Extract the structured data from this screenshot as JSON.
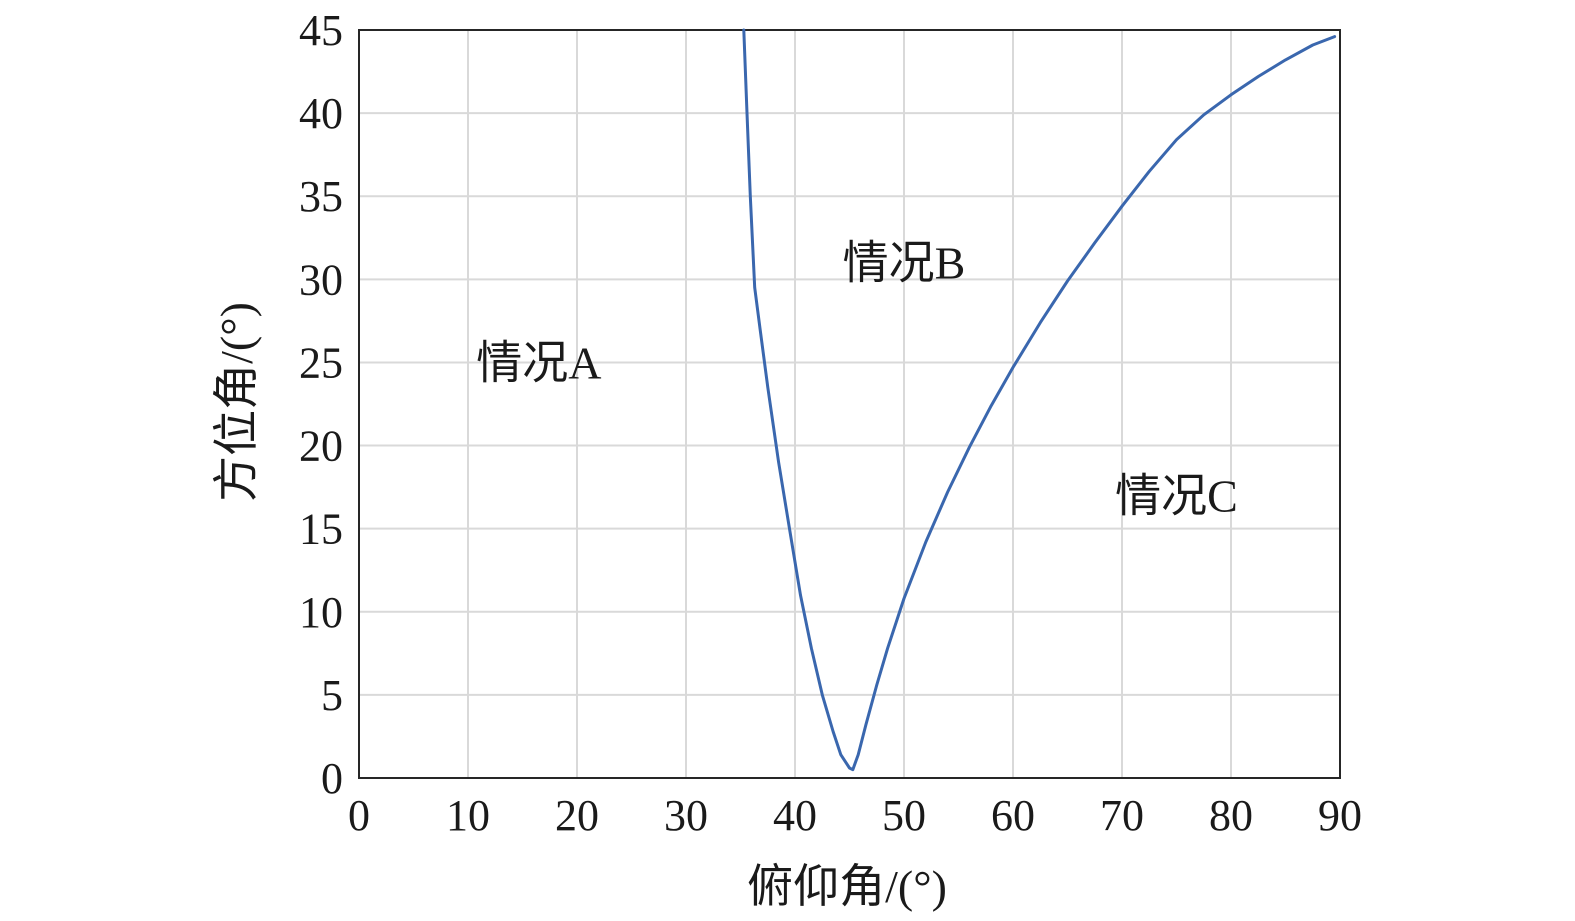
{
  "chart_data": {
    "type": "line",
    "xlabel": "俯仰角/(°)",
    "ylabel": "方位角/(°)",
    "xlim": [
      0,
      90
    ],
    "ylim": [
      0,
      45
    ],
    "xticks": [
      0,
      10,
      20,
      30,
      40,
      50,
      60,
      70,
      80,
      90
    ],
    "yticks": [
      0,
      5,
      10,
      15,
      20,
      25,
      30,
      35,
      40,
      45
    ],
    "grid": true,
    "series": [
      {
        "color": "#3a67ae",
        "x": [
          35.3,
          35.6,
          35.9,
          36.3,
          36.8,
          37.5,
          38.5,
          39.5,
          40.5,
          41.5,
          42.5,
          43.5,
          44.2,
          45.0,
          45.3,
          45.8,
          46.5,
          47.5,
          48.5,
          50.0,
          52.0,
          54.0,
          56.0,
          58.0,
          60.0,
          62.5,
          65.0,
          67.5,
          70.0,
          72.5,
          75.0,
          77.5,
          80.0,
          82.5,
          85.0,
          87.5,
          89.5
        ],
        "y": [
          45.0,
          40.0,
          35.0,
          29.5,
          27.0,
          23.5,
          19.0,
          15.0,
          11.0,
          7.8,
          5.0,
          2.8,
          1.4,
          0.6,
          0.5,
          1.4,
          3.2,
          5.6,
          7.8,
          10.8,
          14.2,
          17.2,
          19.9,
          22.4,
          24.7,
          27.4,
          29.9,
          32.2,
          34.4,
          36.5,
          38.4,
          39.9,
          41.1,
          42.2,
          43.2,
          44.1,
          44.6
        ]
      }
    ],
    "annotations": [
      {
        "text": "情况A",
        "x": 16.5,
        "y": 25
      },
      {
        "text": "情况B",
        "x": 50,
        "y": 31
      },
      {
        "text": "情况C",
        "x": 75,
        "y": 17
      }
    ]
  }
}
